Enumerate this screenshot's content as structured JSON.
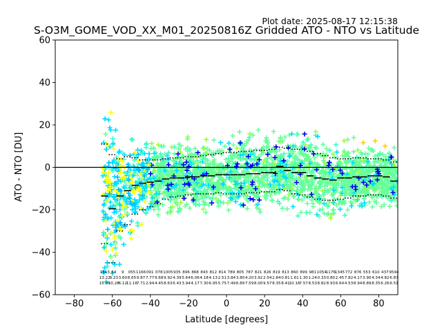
{
  "chart_data": {
    "type": "scatter",
    "plot_date": "Plot date: 2025-08-17 12:15:38",
    "title": "S-O3M_GOME_VOD_XX_M01_20250816Z Gridded ATO - NTO vs Latitude",
    "xlabel": "Latitude [degrees]",
    "ylabel": "ATO - NTO [DU]",
    "xlim": [
      -90,
      90
    ],
    "ylim": [
      -60,
      60
    ],
    "xticks": [
      -80,
      -60,
      -40,
      -20,
      0,
      20,
      40,
      60,
      80
    ],
    "yticks": [
      -60,
      -40,
      -20,
      0,
      20,
      40,
      60
    ],
    "xtick_labels": [
      "−80",
      "−60",
      "−40",
      "−20",
      "0",
      "20",
      "40",
      "60",
      "80"
    ],
    "ytick_labels": [
      "−60",
      "−40",
      "−20",
      "0",
      "20",
      "40",
      "60"
    ],
    "zero_line": 0,
    "grid": false,
    "legend": "none",
    "colors": {
      "mean_line": "#000000",
      "point_palette": [
        "#66ff99",
        "#33ffcc",
        "#00ddff",
        "#00bbff",
        "#ffff00",
        "#ffcc00",
        "#ff9900",
        "#0000ee",
        "#99ff33"
      ]
    },
    "bin_centers": [
      -64,
      -60,
      -56,
      -52,
      -48,
      -44,
      -40,
      -36,
      -32,
      -28,
      -24,
      -20,
      -16,
      -12,
      -8,
      -4,
      0,
      4,
      8,
      12,
      16,
      20,
      24,
      28,
      32,
      36,
      40,
      44,
      48,
      52,
      56,
      60,
      64,
      68,
      72,
      76,
      80,
      84,
      88
    ],
    "mean": [
      -13.5,
      -19.5,
      -13.5,
      -11.0,
      -8.5,
      -7.5,
      -7.0,
      -6.5,
      -5.5,
      -5.0,
      -5.0,
      -4.5,
      -4.5,
      -4.0,
      -4.0,
      -3.5,
      -3.5,
      -3.5,
      -3.5,
      -3.0,
      -3.0,
      -2.5,
      -2.5,
      0.5,
      -1.5,
      -2.5,
      -2.5,
      -4.0,
      -5.0,
      -5.5,
      -6.0,
      -5.0,
      -5.0,
      -4.5,
      -4.5,
      -4.0,
      -4.0,
      -4.5,
      -6.5
    ],
    "upper": [
      11.0,
      6.0,
      4.0,
      5.0,
      4.5,
      3.5,
      3.5,
      3.5,
      4.0,
      4.5,
      4.5,
      5.0,
      5.0,
      5.5,
      6.0,
      6.5,
      7.0,
      7.0,
      7.5,
      7.5,
      8.0,
      8.0,
      8.5,
      9.5,
      9.0,
      8.5,
      8.5,
      7.5,
      6.5,
      5.5,
      4.5,
      4.0,
      4.0,
      4.5,
      4.5,
      4.0,
      4.0,
      3.5,
      2.5
    ],
    "lower": [
      -36.0,
      -45.0,
      -30.0,
      -27.0,
      -22.0,
      -20.0,
      -18.5,
      -17.0,
      -15.0,
      -14.0,
      -13.5,
      -13.0,
      -12.5,
      -12.5,
      -12.5,
      -12.0,
      -12.5,
      -12.5,
      -12.5,
      -12.0,
      -12.0,
      -11.5,
      -11.5,
      -10.5,
      -11.0,
      -12.5,
      -13.0,
      -14.0,
      -15.0,
      -15.5,
      -15.5,
      -15.0,
      -14.5,
      -13.5,
      -13.5,
      -13.0,
      -13.0,
      -13.5,
      -14.5
    ],
    "bin_stats_text": [
      [
        "1563",
        "13.22",
        "15.90"
      ],
      [
        "64",
        "9.23",
        "10.28"
      ],
      [
        "9",
        "3.60",
        "6.12"
      ],
      [
        "055",
        "8.65",
        "11.16"
      ],
      [
        "1166",
        "9.87",
        "7.71"
      ],
      [
        "091",
        "7.77",
        "2.94"
      ],
      [
        "078",
        "9.68",
        "4.45"
      ],
      [
        "1005",
        "9.92",
        "8.63"
      ],
      [
        "935",
        "4.39",
        "6.43"
      ],
      [
        "896",
        "5.64",
        "3.94"
      ],
      [
        "868",
        "6.06",
        "4.17"
      ],
      [
        "843",
        "4.18",
        "7.30"
      ],
      [
        "812",
        "4.13",
        "6.95"
      ],
      [
        "814",
        "2.51",
        "5.75"
      ],
      [
        "789",
        "3.84",
        "7.49"
      ],
      [
        "805",
        "3.80",
        "6.89"
      ],
      [
        "787",
        "4.20",
        "7.59"
      ],
      [
        "821",
        "3.92",
        "8.00"
      ],
      [
        "826",
        "2.54",
        "9.57"
      ],
      [
        "819",
        "2.84",
        "8.35"
      ],
      [
        "813",
        "0.81",
        "8.41"
      ],
      [
        "860",
        "1.61",
        "10.16"
      ],
      [
        "899",
        "1.30",
        "7.57"
      ],
      [
        "981",
        "1.24",
        "8.53"
      ],
      [
        "1054",
        "0.33",
        "8.82"
      ],
      [
        "1176",
        "0.80",
        "8.93"
      ],
      [
        "1345",
        "2.45",
        "6.64"
      ],
      [
        "772",
        "7.82",
        "4.53"
      ],
      [
        "876",
        "4.17",
        "8.94"
      ],
      [
        "553",
        "3.90",
        "8.89"
      ],
      [
        "610",
        "4.34",
        "8.35"
      ],
      [
        "437",
        "4.82",
        "6.26"
      ],
      [
        "9594",
        "6.87",
        "6.51"
      ]
    ]
  }
}
